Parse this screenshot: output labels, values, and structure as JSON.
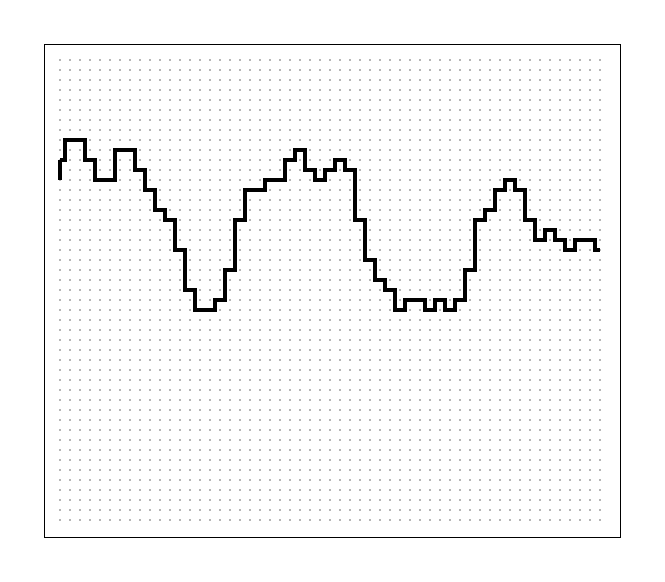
{
  "chart_data": {
    "type": "line",
    "step": true,
    "grid": "dotted",
    "axes_labels_shown": false,
    "line_color": "#000000",
    "frame_color": "#000000",
    "grid_color": "#333333",
    "x": [
      0,
      1,
      2,
      3,
      4,
      5,
      6,
      7,
      8,
      9,
      10,
      11,
      12,
      13,
      14,
      15,
      16,
      17,
      18,
      19,
      20,
      21,
      22,
      23,
      24,
      25,
      26,
      27,
      28,
      29,
      30,
      31,
      32,
      33,
      34,
      35,
      36,
      37,
      38,
      39,
      40,
      41,
      42,
      43,
      44,
      45,
      46,
      47,
      48,
      49,
      50,
      51,
      52,
      53,
      54
    ],
    "y": [
      36,
      38,
      38,
      36,
      34,
      34,
      37,
      37,
      35,
      33,
      31,
      30,
      27,
      23,
      21,
      21,
      22,
      25,
      30,
      33,
      33,
      34,
      34,
      36,
      37,
      35,
      34,
      35,
      36,
      35,
      30,
      26,
      24,
      23,
      21,
      22,
      22,
      21,
      22,
      21,
      22,
      25,
      30,
      31,
      33,
      34,
      33,
      30,
      28,
      29,
      28,
      27,
      28,
      28,
      27
    ],
    "xlim": [
      -1,
      55
    ],
    "ylim": [
      0,
      48
    ]
  }
}
